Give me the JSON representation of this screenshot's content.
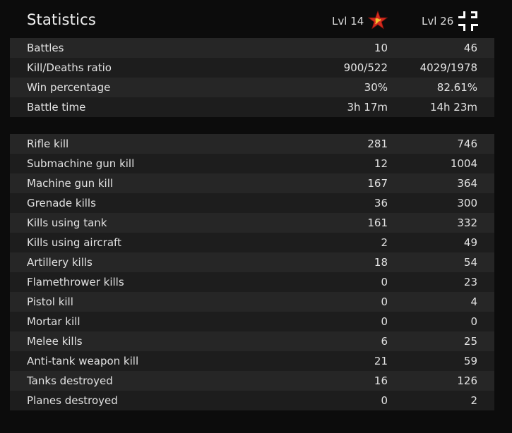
{
  "header": {
    "title": "Statistics",
    "player1": {
      "level": "Lvl 14",
      "faction_icon": "soviet-star-icon",
      "icon_color": "#d42a1e"
    },
    "player2": {
      "level": "Lvl 26",
      "faction_icon": "balkenkreuz-icon",
      "icon_color": "#ffffff"
    }
  },
  "general_stats": [
    {
      "label": "Battles",
      "p1": "10",
      "p2": "46"
    },
    {
      "label": "Kill/Deaths ratio",
      "p1": "900/522",
      "p2": "4029/1978"
    },
    {
      "label": "Win percentage",
      "p1": "30%",
      "p2": "82.61%"
    },
    {
      "label": "Battle time",
      "p1": "3h 17m",
      "p2": "14h 23m"
    }
  ],
  "kill_stats": [
    {
      "label": "Rifle kill",
      "p1": "281",
      "p2": "746"
    },
    {
      "label": "Submachine gun kill",
      "p1": "12",
      "p2": "1004"
    },
    {
      "label": "Machine gun kill",
      "p1": "167",
      "p2": "364"
    },
    {
      "label": "Grenade kills",
      "p1": "36",
      "p2": "300"
    },
    {
      "label": "Kills using tank",
      "p1": "161",
      "p2": "332"
    },
    {
      "label": "Kills using aircraft",
      "p1": "2",
      "p2": "49"
    },
    {
      "label": "Artillery kills",
      "p1": "18",
      "p2": "54"
    },
    {
      "label": "Flamethrower kills",
      "p1": "0",
      "p2": "23"
    },
    {
      "label": "Pistol kill",
      "p1": "0",
      "p2": "4"
    },
    {
      "label": "Mortar kill",
      "p1": "0",
      "p2": "0"
    },
    {
      "label": "Melee kills",
      "p1": "6",
      "p2": "25"
    },
    {
      "label": "Anti-tank weapon kill",
      "p1": "21",
      "p2": "59"
    },
    {
      "label": "Tanks destroyed",
      "p1": "16",
      "p2": "126"
    },
    {
      "label": "Planes destroyed",
      "p1": "0",
      "p2": "2"
    }
  ]
}
